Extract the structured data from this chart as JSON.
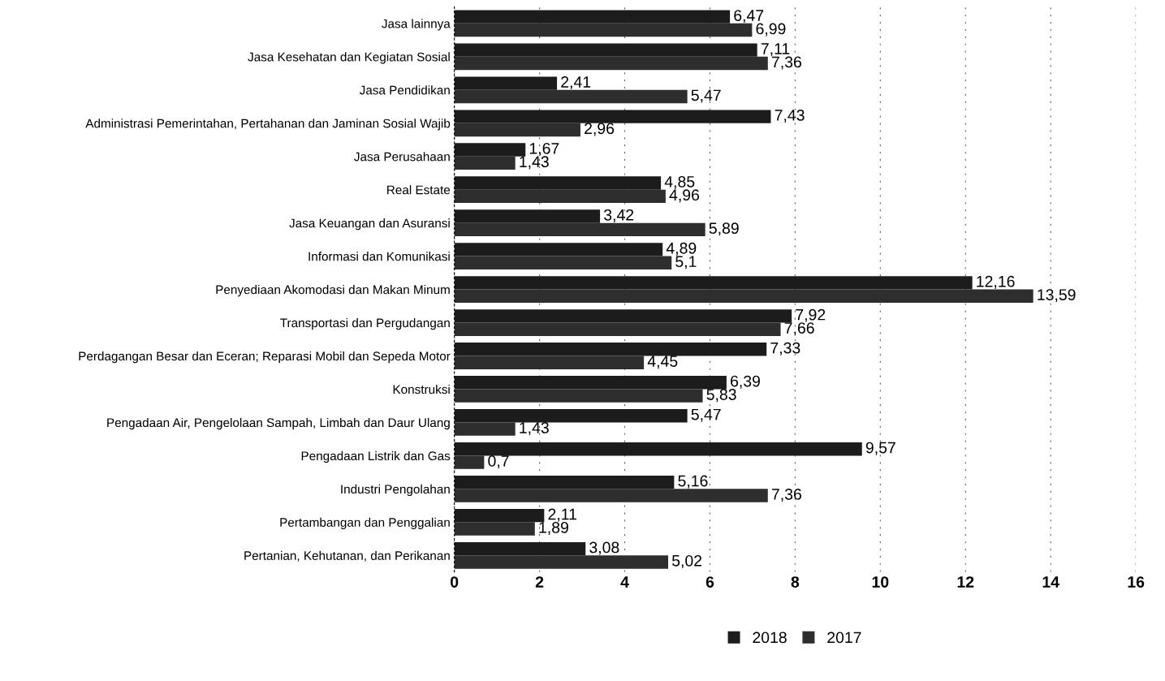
{
  "chart_data": {
    "type": "bar",
    "orientation": "horizontal",
    "categories": [
      "Jasa lainnya",
      "Jasa Kesehatan dan Kegiatan Sosial",
      "Jasa Pendidikan",
      "Administrasi Pemerintahan, Pertahanan dan Jaminan Sosial Wajib",
      "Jasa Perusahaan",
      "Real Estate",
      "Jasa Keuangan dan Asuransi",
      "Informasi dan Komunikasi",
      "Penyediaan Akomodasi dan Makan Minum",
      "Transportasi dan Pergudangan",
      "Perdagangan Besar dan Eceran; Reparasi Mobil dan Sepeda Motor",
      "Konstruksi",
      "Pengadaan Air, Pengelolaan Sampah, Limbah dan Daur Ulang",
      "Pengadaan Listrik dan Gas",
      "Industri Pengolahan",
      "Pertambangan dan Penggalian",
      "Pertanian, Kehutanan, dan Perikanan"
    ],
    "series": [
      {
        "name": "2018",
        "color": "#1c1c1c",
        "values": [
          6.47,
          7.11,
          2.41,
          7.43,
          1.67,
          4.85,
          3.42,
          4.89,
          12.16,
          7.92,
          7.33,
          6.39,
          5.47,
          9.57,
          5.16,
          2.11,
          3.08
        ],
        "value_labels": [
          "6,47",
          "7,11",
          "2,41",
          "7,43",
          "1,67",
          "4,85",
          "3,42",
          "4,89",
          "12,16",
          "7,92",
          "7,33",
          "6,39",
          "5,47",
          "9,57",
          "5,16",
          "2,11",
          "3,08"
        ]
      },
      {
        "name": "2017",
        "color": "#2e2e2e",
        "values": [
          6.99,
          7.36,
          5.47,
          2.96,
          1.43,
          4.96,
          5.89,
          5.1,
          13.59,
          7.66,
          4.45,
          5.83,
          1.43,
          0.7,
          7.36,
          1.89,
          5.02
        ],
        "value_labels": [
          "6,99",
          "7,36",
          "5,47",
          "2,96",
          "1,43",
          "4,96",
          "5,89",
          "5,1",
          "13,59",
          "7,66",
          "4,45",
          "5,83",
          "1,43",
          "0,7",
          "7,36",
          "1,89",
          "5,02"
        ]
      }
    ],
    "xlim": [
      0,
      16
    ],
    "xticks": [
      0,
      2,
      4,
      6,
      8,
      10,
      12,
      14,
      16
    ],
    "grid": "x",
    "legend": "bottom"
  }
}
